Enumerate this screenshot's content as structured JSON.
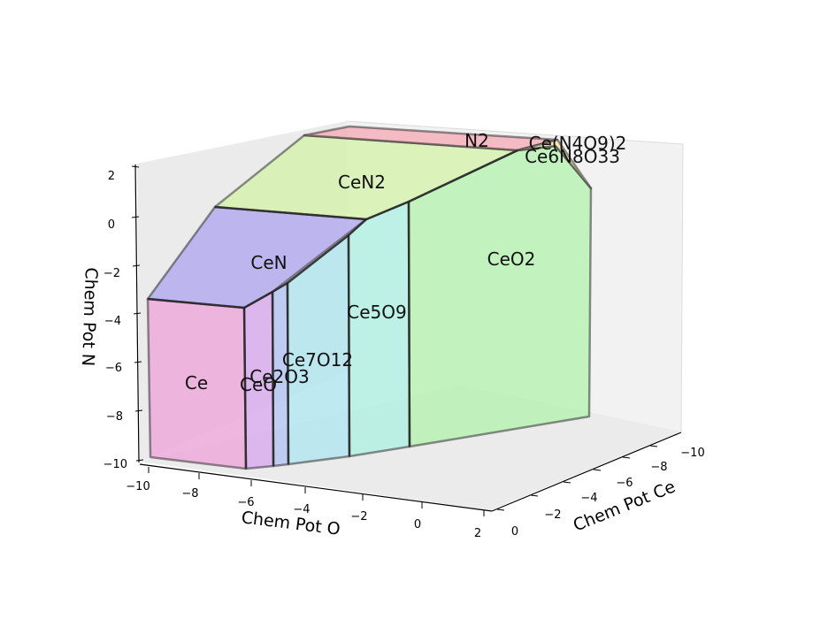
{
  "chart_data": {
    "type": "3d-polyhedral-phase-diagram",
    "system": [
      "Ce",
      "O",
      "N"
    ],
    "axes": {
      "x": {
        "label": "Chem Pot O",
        "ticks": [
          "−10",
          "−8",
          "−6",
          "−4",
          "−2",
          "0",
          "2"
        ]
      },
      "y": {
        "label": "Chem Pot Ce",
        "ticks": [
          "0",
          "−2",
          "−4",
          "−6",
          "−8",
          "−10"
        ]
      },
      "z": {
        "label": "Chem Pot N",
        "ticks": [
          "2",
          "0",
          "−2",
          "−4",
          "−6",
          "−8",
          "−10"
        ]
      }
    },
    "grid": false,
    "regions": [
      {
        "name": "Ce",
        "color": "#ee9cd8"
      },
      {
        "name": "CeO",
        "color": "#d8aaee"
      },
      {
        "name": "Ce2O3",
        "color": "#b4c4f4"
      },
      {
        "name": "Ce7O12",
        "color": "#aee6f0"
      },
      {
        "name": "Ce5O9",
        "color": "#acf0e2"
      },
      {
        "name": "CeO2",
        "color": "#aef2a8"
      },
      {
        "name": "CeN",
        "color": "#aaa0f0"
      },
      {
        "name": "CeN2",
        "color": "#d2f4a4"
      },
      {
        "name": "N2",
        "color": "#f6a8b4"
      },
      {
        "name": "Ce(N4O9)2",
        "color": "#f8eaa0"
      },
      {
        "name": "Ce6N8O33",
        "color": "#f8e0a0"
      }
    ]
  }
}
